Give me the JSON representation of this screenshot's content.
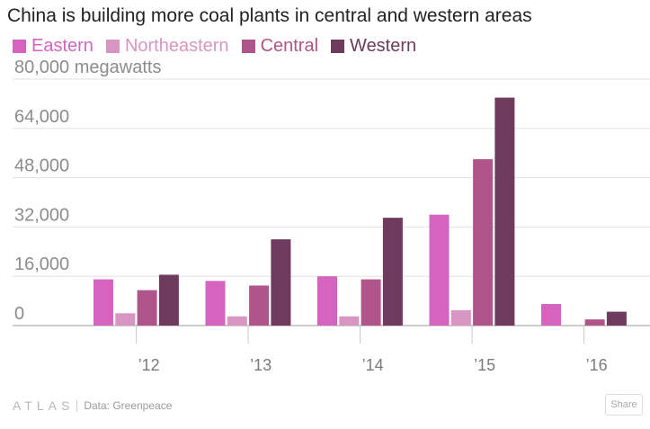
{
  "chart_data": {
    "type": "bar",
    "title": "China is building more coal plants in central and western areas",
    "categories": [
      "’12",
      "’13",
      "’14",
      "’15",
      "’16"
    ],
    "series": [
      {
        "name": "Eastern",
        "color": "#d563c0",
        "values": [
          15000,
          14500,
          16000,
          36000,
          7000
        ]
      },
      {
        "name": "Northeastern",
        "color": "#d796c2",
        "values": [
          4000,
          3000,
          3000,
          5000,
          0
        ]
      },
      {
        "name": "Central",
        "color": "#b05589",
        "values": [
          11500,
          13000,
          15000,
          54000,
          2000
        ]
      },
      {
        "name": "Western",
        "color": "#6e3a5e",
        "values": [
          16500,
          28000,
          35000,
          74000,
          4500
        ]
      }
    ],
    "ylim": [
      0,
      80000
    ],
    "yticks": [
      0,
      16000,
      32000,
      48000,
      64000,
      80000
    ],
    "ytick_labels": [
      "0",
      "16,000",
      "32,000",
      "48,000",
      "64,000",
      "80,000 megawatts"
    ],
    "grid": true,
    "legend_position": "top-left"
  },
  "footer": {
    "logo": "ATLAS",
    "source": "Data: Greenpeace"
  },
  "share_label": "Share"
}
